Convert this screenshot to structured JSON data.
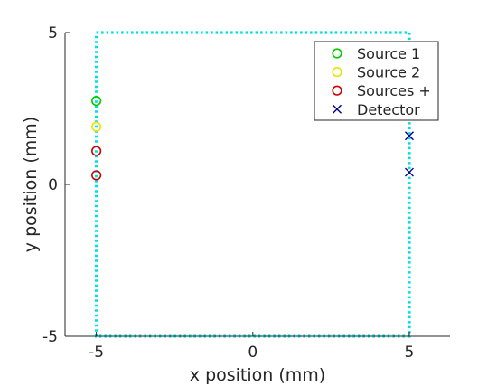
{
  "chart_data": {
    "type": "scatter",
    "title": "",
    "xlabel": "x position (mm)",
    "ylabel": "y position (mm)",
    "xlim": [
      -6,
      6.3
    ],
    "ylim": [
      -5,
      5
    ],
    "xticks": [
      -5,
      0,
      5
    ],
    "yticks": [
      -5,
      0,
      5
    ],
    "grid": false,
    "legend_position": "top-right",
    "boundary": {
      "x": [
        -5,
        5,
        5,
        -5,
        -5
      ],
      "y": [
        5,
        5,
        -5,
        -5,
        5
      ],
      "style": "dotted",
      "color": "#00e0e0"
    },
    "series": [
      {
        "name": "Source 1",
        "marker": "o",
        "color": "#00cc00",
        "x": [
          -5
        ],
        "y": [
          2.75
        ]
      },
      {
        "name": "Source 2",
        "marker": "o",
        "color": "#e6e600",
        "x": [
          -5
        ],
        "y": [
          1.9
        ]
      },
      {
        "name": "Sources +",
        "marker": "o",
        "color": "#cc0000",
        "x": [
          -5,
          -5
        ],
        "y": [
          1.1,
          0.3
        ]
      },
      {
        "name": "Detector",
        "marker": "x",
        "color": "#00008b",
        "x": [
          5,
          5
        ],
        "y": [
          1.6,
          0.4
        ]
      }
    ]
  }
}
